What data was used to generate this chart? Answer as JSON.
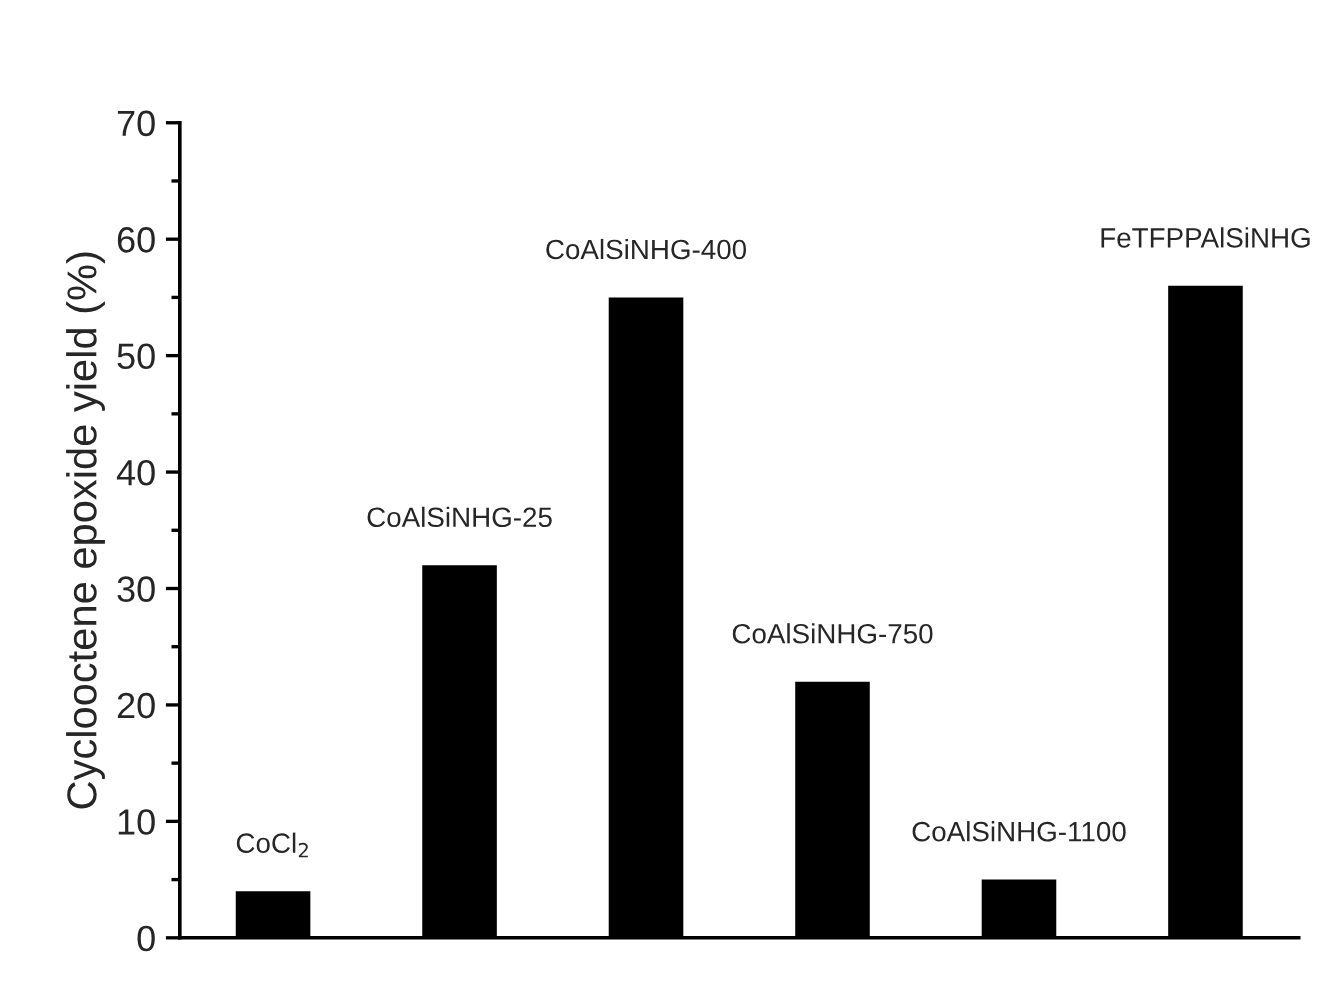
{
  "chart_data": {
    "type": "bar",
    "ylabel": "Cyclooctene epoxide yield (%)",
    "categories": [
      "CoCl$_{2}$",
      "CoAlSiNHG-25",
      "CoAlSiNHG-400",
      "CoAlSiNHG-750",
      "CoAlSiNHG-1100",
      "FeTFPPAlSiNHG"
    ],
    "values": [
      4,
      32,
      55,
      22,
      5,
      56
    ],
    "color": "#000000",
    "ylim": [
      0,
      70
    ],
    "yticks": [
      0,
      10,
      20,
      30,
      40,
      50,
      60,
      70
    ],
    "grid": false
  }
}
